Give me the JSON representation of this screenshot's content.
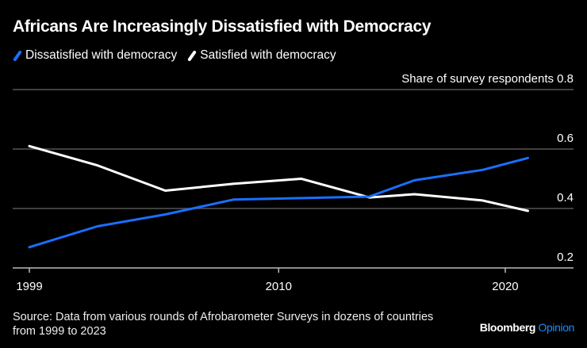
{
  "chart_data": {
    "type": "line",
    "title": "Africans Are Increasingly Dissatisfied with Democracy",
    "ylabel": "Share of survey respondents",
    "xlabel": "",
    "ylim": [
      0.2,
      0.8
    ],
    "xlim": [
      1998.7,
      2022.0
    ],
    "yticks": [
      0.2,
      0.4,
      0.6,
      0.8
    ],
    "ytick_labels": [
      "0.2",
      "0.4",
      "0.6",
      "0.8"
    ],
    "xticks": [
      1999,
      2010,
      2020
    ],
    "xtick_labels": [
      "1999",
      "2010",
      "2020"
    ],
    "grid": true,
    "legend_position": "top-left",
    "x": [
      1999,
      2002,
      2005,
      2008,
      2011,
      2014,
      2016,
      2019,
      2021
    ],
    "series": [
      {
        "name": "Dissatisfied with democracy",
        "color": "#1a6fff",
        "values": [
          0.27,
          0.34,
          0.38,
          0.43,
          0.435,
          0.44,
          0.495,
          0.53,
          0.57
        ]
      },
      {
        "name": "Satisfied with democracy",
        "color": "#ffffff",
        "values": [
          0.61,
          0.545,
          0.46,
          0.483,
          0.5,
          0.437,
          0.448,
          0.427,
          0.392
        ]
      }
    ]
  },
  "footer": {
    "source_line1": "Source: Data from various rounds of Afrobarometer Surveys in dozens of countries",
    "source_line2": "from 1999 to 2023",
    "brand": "Bloomberg",
    "brand_accent": "Opinion"
  }
}
